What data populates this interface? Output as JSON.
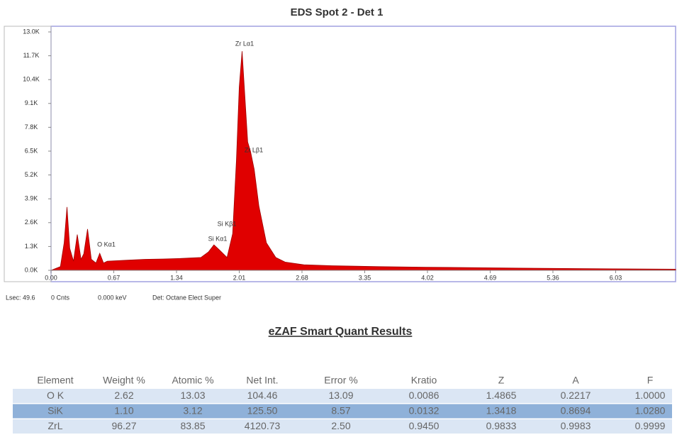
{
  "chart_data": {
    "type": "area",
    "title": "EDS Spot 2 - Det 1",
    "x": [
      0,
      0.1,
      0.14,
      0.17,
      0.2,
      0.24,
      0.28,
      0.32,
      0.35,
      0.39,
      0.43,
      0.48,
      0.52,
      0.56,
      0.6,
      0.8,
      1.0,
      1.2,
      1.4,
      1.6,
      1.68,
      1.74,
      1.8,
      1.88,
      1.94,
      1.98,
      2.01,
      2.04,
      2.07,
      2.1,
      2.13,
      2.17,
      2.22,
      2.3,
      2.4,
      2.5,
      2.7,
      3.0,
      3.5,
      4.0,
      5.0,
      6.0,
      6.67
    ],
    "values": [
      0,
      200,
      1500,
      3450,
      1200,
      500,
      1950,
      600,
      900,
      2250,
      600,
      400,
      930,
      400,
      500,
      550,
      600,
      620,
      650,
      700,
      1000,
      1390,
      1100,
      700,
      2000,
      6000,
      10000,
      11950,
      9500,
      7000,
      6500,
      5500,
      3500,
      1500,
      700,
      450,
      300,
      250,
      200,
      170,
      120,
      80,
      60
    ],
    "color": "#e00000",
    "xlim": [
      0,
      6.67
    ],
    "xticks": [
      {
        "value": 0,
        "label": "0.00"
      },
      0.67,
      1.34,
      2.01,
      2.68,
      3.35,
      4.02,
      4.69,
      5.36,
      6.03
    ],
    "ylim": [
      0,
      13000
    ],
    "yticks": [
      {
        "value": 0,
        "label": "0.0K"
      },
      {
        "value": 1300,
        "label": "1.3K"
      },
      {
        "value": 2600,
        "label": "2.6K"
      },
      {
        "value": 3900,
        "label": "3.9K"
      },
      {
        "value": 5200,
        "label": "5.2K"
      },
      {
        "value": 6500,
        "label": "6.5K"
      },
      {
        "value": 7800,
        "label": "7.8K"
      },
      {
        "value": 9100,
        "label": "9.1K"
      },
      {
        "value": 10400,
        "label": "10.4K"
      },
      {
        "value": 11700,
        "label": "11.7K"
      },
      {
        "value": 13000,
        "label": "13.0K"
      }
    ],
    "annotations": [
      "Zr Lα1",
      "Zr Lβ1",
      "Si Kβ1",
      "Si Kα1",
      "O Kα1"
    ]
  },
  "status": [
    "Lsec: 49.6",
    "0 Cnts",
    "0.000 keV",
    "Det: Octane Elect Super"
  ],
  "table": {
    "title": "eZAF Smart Quant Results",
    "columns": [
      "Element",
      "Weight %",
      "Atomic %",
      "Net Int.",
      "Error %",
      "Kratio",
      "Z",
      "A",
      "F"
    ],
    "rows": [
      [
        "O K",
        "2.62",
        "13.03",
        "104.46",
        "13.09",
        "0.0086",
        "1.4865",
        "0.2217",
        "1.0000"
      ],
      [
        "SiK",
        "1.10",
        "3.12",
        "125.50",
        "8.57",
        "0.0132",
        "1.3418",
        "0.8694",
        "1.0280"
      ],
      [
        "ZrL",
        "96.27",
        "83.85",
        "4120.73",
        "2.50",
        "0.9450",
        "0.9833",
        "0.9983",
        "0.9999"
      ]
    ]
  }
}
